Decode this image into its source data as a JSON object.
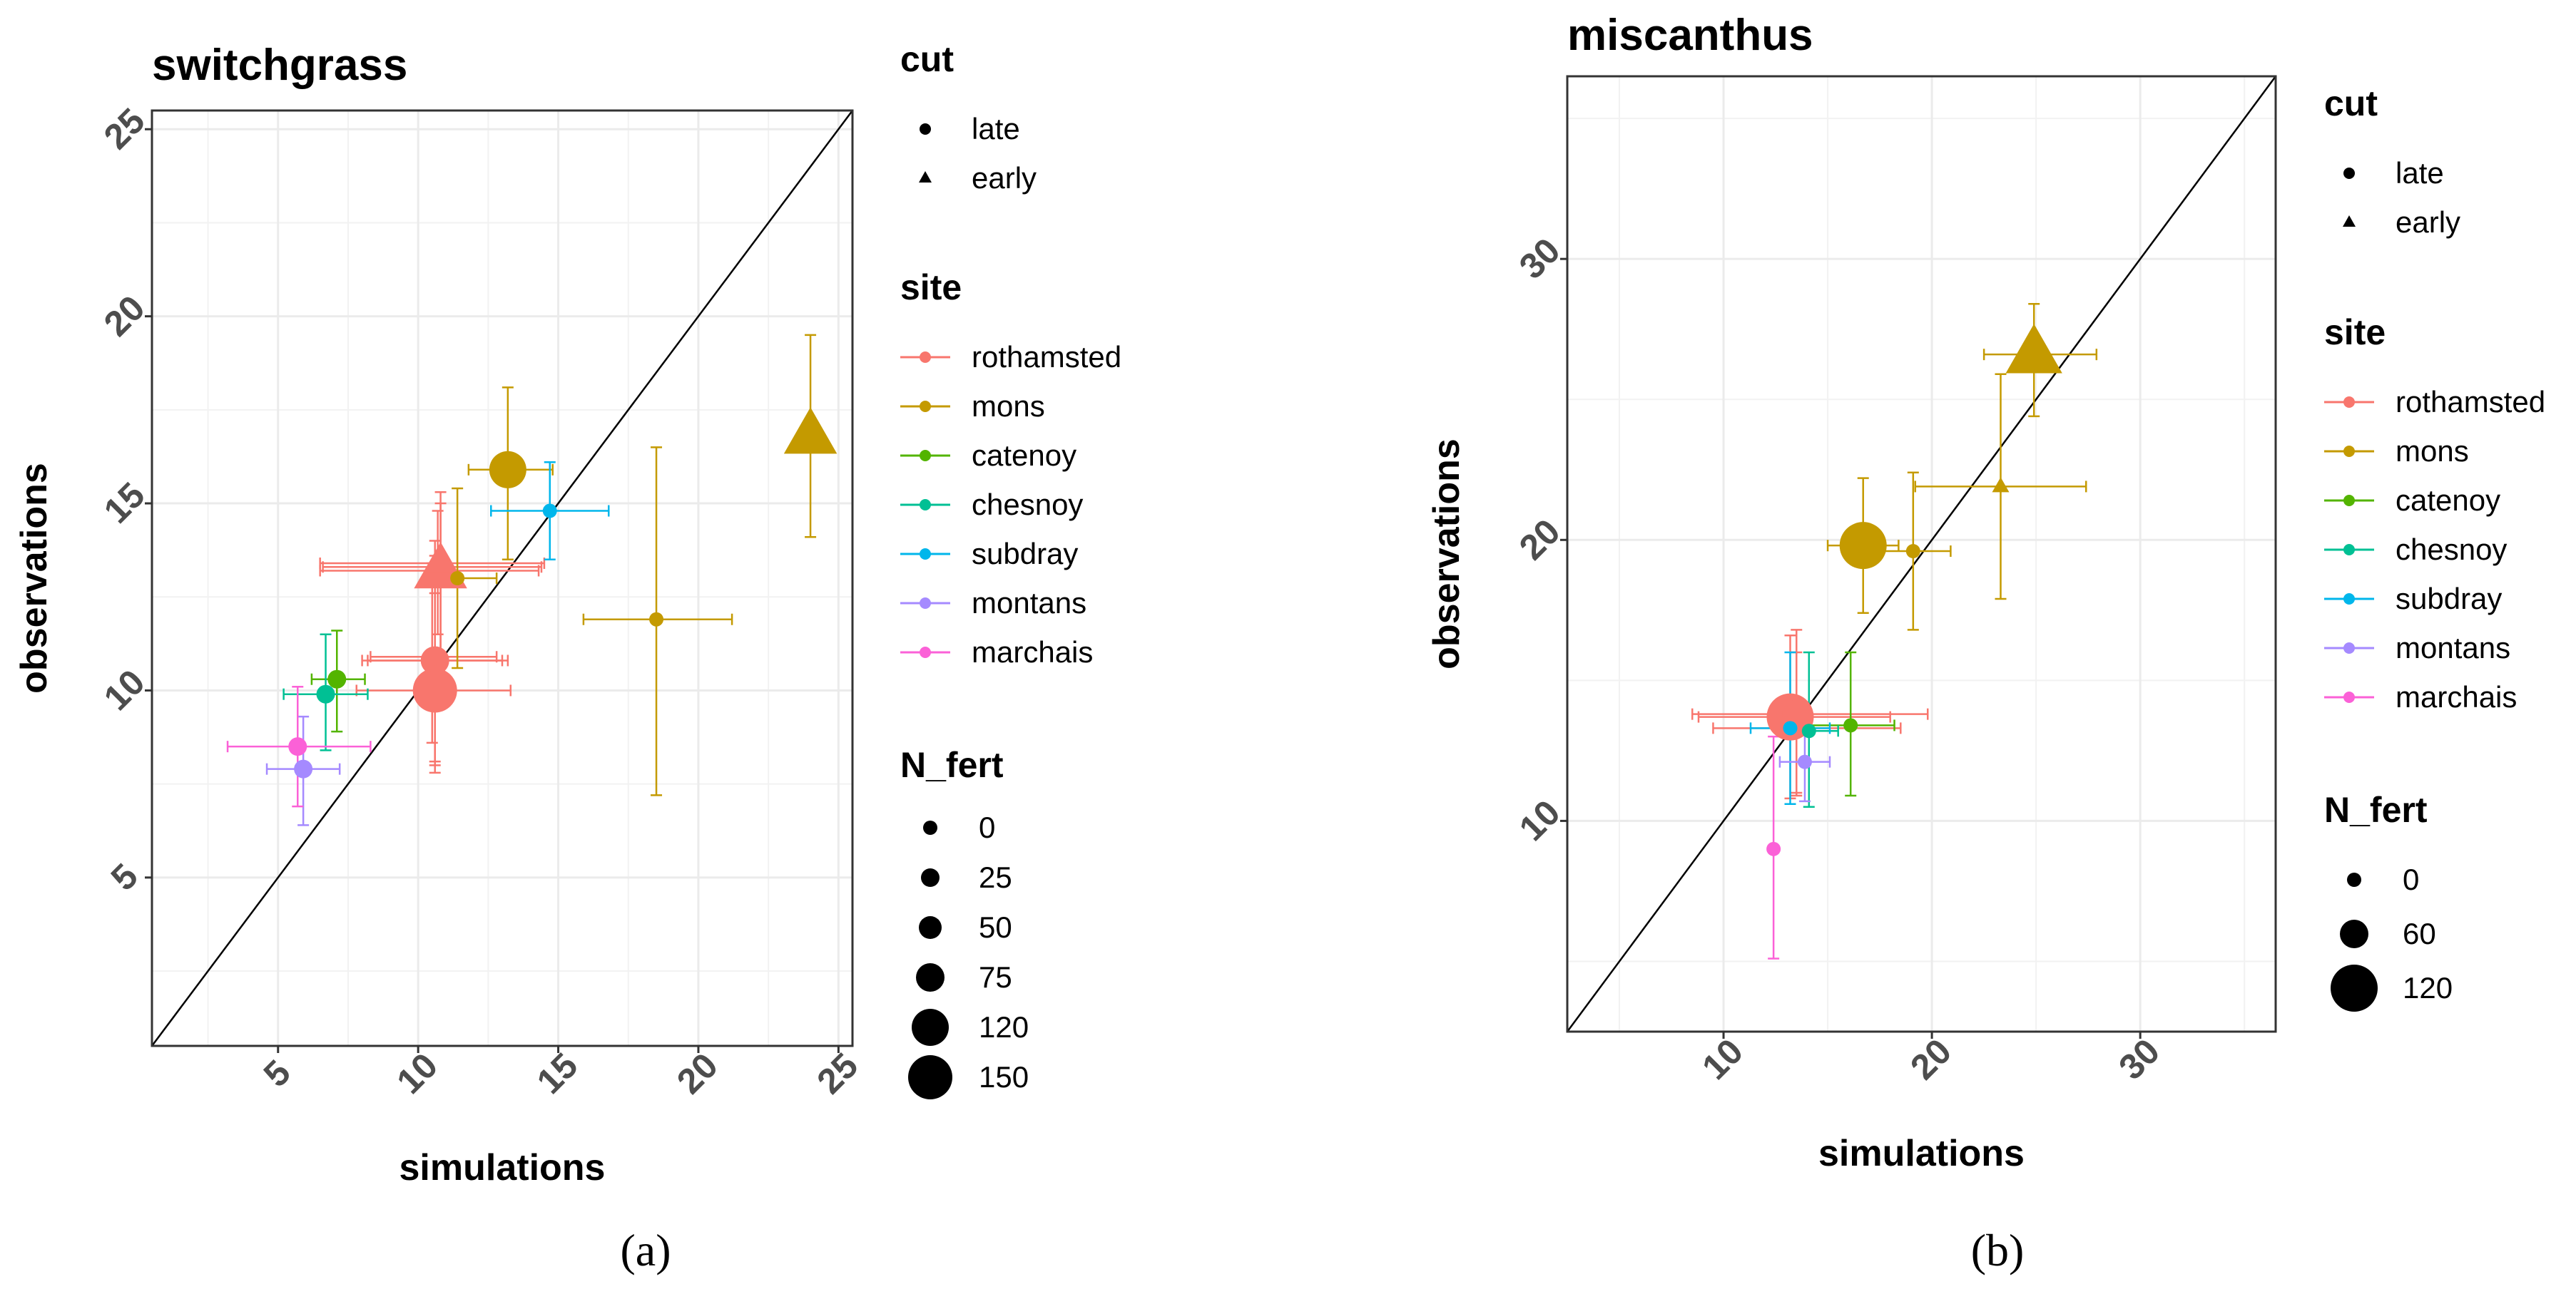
{
  "chart_data": [
    {
      "type": "scatter",
      "title": "switchgrass",
      "xlabel": "simulations",
      "ylabel": "observations",
      "xlim": [
        0.5,
        25.5
      ],
      "ylim": [
        0.5,
        25.5
      ],
      "xticks": [
        5,
        10,
        15,
        20,
        25
      ],
      "yticks": [
        5,
        10,
        15,
        20,
        25
      ],
      "caption": "(a)",
      "legend": {
        "cut_title": "cut",
        "cut": [
          "late",
          "early"
        ],
        "site_title": "site",
        "sites": [
          "rothamsted",
          "mons",
          "catenoy",
          "chesnoy",
          "subdray",
          "montans",
          "marchais"
        ],
        "site_colors": [
          "#F8766D",
          "#C49A00",
          "#53B400",
          "#00C094",
          "#00B6EB",
          "#A58AFF",
          "#FB61D7"
        ],
        "nfert_title": "N_fert",
        "nfert": [
          "0",
          "25",
          "50",
          "75",
          "120",
          "150"
        ]
      },
      "points": [
        {
          "site": "rothamsted",
          "cut": "late",
          "n": 25,
          "x": 10.5,
          "y": 10.9,
          "xmin": 8.3,
          "xmax": 12.8,
          "ymin": 8.6,
          "ymax": 13.4
        },
        {
          "site": "rothamsted",
          "cut": "late",
          "n": 50,
          "x": 10.6,
          "y": 10.8,
          "xmin": 8.0,
          "xmax": 13.0,
          "ymin": 8.1,
          "ymax": 13.6
        },
        {
          "site": "rothamsted",
          "cut": "late",
          "n": 75,
          "x": 10.6,
          "y": 10.8,
          "xmin": 8.2,
          "xmax": 13.2,
          "ymin": 8.0,
          "ymax": 14.0
        },
        {
          "site": "rothamsted",
          "cut": "late",
          "n": 150,
          "x": 10.6,
          "y": 10.0,
          "xmin": 7.8,
          "xmax": 13.3,
          "ymin": 7.8,
          "ymax": 12.6
        },
        {
          "site": "rothamsted",
          "cut": "early",
          "n": 50,
          "x": 10.7,
          "y": 13.4,
          "xmin": 6.5,
          "xmax": 14.5,
          "ymin": 11.5,
          "ymax": 14.8
        },
        {
          "site": "rothamsted",
          "cut": "early",
          "n": 120,
          "x": 10.8,
          "y": 13.3,
          "xmin": 6.6,
          "xmax": 14.4,
          "ymin": 11.0,
          "ymax": 15.0
        },
        {
          "site": "rothamsted",
          "cut": "early",
          "n": 150,
          "x": 10.8,
          "y": 13.2,
          "xmin": 6.5,
          "xmax": 14.3,
          "ymin": 10.9,
          "ymax": 15.3
        },
        {
          "site": "mons",
          "cut": "late",
          "n": 120,
          "x": 13.2,
          "y": 15.9,
          "xmin": 11.8,
          "xmax": 14.8,
          "ymin": 13.5,
          "ymax": 18.1
        },
        {
          "site": "mons",
          "cut": "late",
          "n": 0,
          "x": 11.4,
          "y": 13.0,
          "xmin": 10.3,
          "xmax": 12.8,
          "ymin": 10.6,
          "ymax": 15.4
        },
        {
          "site": "mons",
          "cut": "late",
          "n": 0,
          "x": 18.5,
          "y": 11.9,
          "xmin": 15.9,
          "xmax": 21.2,
          "ymin": 7.2,
          "ymax": 16.5
        },
        {
          "site": "mons",
          "cut": "early",
          "n": 150,
          "x": 24.0,
          "y": 16.8,
          "xmin": 24.0,
          "xmax": 24.0,
          "ymin": 14.1,
          "ymax": 19.5
        },
        {
          "site": "catenoy",
          "cut": "late",
          "n": 25,
          "x": 7.1,
          "y": 10.3,
          "xmin": 6.2,
          "xmax": 8.1,
          "ymin": 8.9,
          "ymax": 11.6
        },
        {
          "site": "chesnoy",
          "cut": "late",
          "n": 25,
          "x": 6.7,
          "y": 9.9,
          "xmin": 5.2,
          "xmax": 8.2,
          "ymin": 8.4,
          "ymax": 11.5
        },
        {
          "site": "subdray",
          "cut": "late",
          "n": 0,
          "x": 14.7,
          "y": 14.8,
          "xmin": 12.6,
          "xmax": 16.8,
          "ymin": 13.5,
          "ymax": 16.1
        },
        {
          "site": "montans",
          "cut": "late",
          "n": 25,
          "x": 5.9,
          "y": 7.9,
          "xmin": 4.6,
          "xmax": 7.2,
          "ymin": 6.4,
          "ymax": 9.3
        },
        {
          "site": "marchais",
          "cut": "late",
          "n": 25,
          "x": 5.7,
          "y": 8.5,
          "xmin": 3.2,
          "xmax": 8.3,
          "ymin": 6.9,
          "ymax": 10.1
        }
      ]
    },
    {
      "type": "scatter",
      "title": "miscanthus",
      "xlabel": "simulations",
      "ylabel": "observations",
      "xlim": [
        2.5,
        36.5
      ],
      "ylim": [
        2.5,
        36.5
      ],
      "xticks": [
        10,
        20,
        30
      ],
      "yticks": [
        10,
        20,
        30
      ],
      "caption": "(b)",
      "legend": {
        "cut_title": "cut",
        "cut": [
          "late",
          "early"
        ],
        "site_title": "site",
        "sites": [
          "rothamsted",
          "mons",
          "catenoy",
          "chesnoy",
          "subdray",
          "montans",
          "marchais"
        ],
        "site_colors": [
          "#F8766D",
          "#C49A00",
          "#53B400",
          "#00C094",
          "#00B6EB",
          "#A58AFF",
          "#FB61D7"
        ],
        "nfert_title": "N_fert",
        "nfert": [
          "0",
          "60",
          "120"
        ]
      },
      "points": [
        {
          "site": "rothamsted",
          "cut": "late",
          "n": 60,
          "x": 13.5,
          "y": 13.8,
          "xmin": 8.5,
          "xmax": 19.8,
          "ymin": 10.9,
          "ymax": 16.8
        },
        {
          "site": "rothamsted",
          "cut": "late",
          "n": 120,
          "x": 13.2,
          "y": 13.7,
          "xmin": 8.8,
          "xmax": 18.0,
          "ymin": 10.8,
          "ymax": 16.6
        },
        {
          "site": "rothamsted",
          "cut": "late",
          "n": 0,
          "x": 13.5,
          "y": 13.3,
          "xmin": 9.5,
          "xmax": 18.5,
          "ymin": 11.0,
          "ymax": 16.0
        },
        {
          "site": "mons",
          "cut": "late",
          "n": 120,
          "x": 16.7,
          "y": 19.8,
          "xmin": 15.0,
          "xmax": 18.4,
          "ymin": 17.4,
          "ymax": 22.2
        },
        {
          "site": "mons",
          "cut": "late",
          "n": 0,
          "x": 19.1,
          "y": 19.6,
          "xmin": 17.3,
          "xmax": 20.9,
          "ymin": 16.8,
          "ymax": 22.4
        },
        {
          "site": "mons",
          "cut": "early",
          "n": 0,
          "x": 23.3,
          "y": 21.9,
          "xmin": 19.2,
          "xmax": 27.4,
          "ymin": 17.9,
          "ymax": 25.9
        },
        {
          "site": "mons",
          "cut": "early",
          "n": 120,
          "x": 24.9,
          "y": 26.6,
          "xmin": 22.5,
          "xmax": 27.9,
          "ymin": 24.4,
          "ymax": 28.4
        },
        {
          "site": "catenoy",
          "cut": "late",
          "n": 0,
          "x": 16.1,
          "y": 13.4,
          "xmin": 14.0,
          "xmax": 18.2,
          "ymin": 10.9,
          "ymax": 16.0
        },
        {
          "site": "chesnoy",
          "cut": "late",
          "n": 0,
          "x": 14.1,
          "y": 13.2,
          "xmin": 12.7,
          "xmax": 15.5,
          "ymin": 10.5,
          "ymax": 16.0
        },
        {
          "site": "subdray",
          "cut": "late",
          "n": 0,
          "x": 13.2,
          "y": 13.3,
          "xmin": 11.3,
          "xmax": 15.1,
          "ymin": 10.6,
          "ymax": 16.0
        },
        {
          "site": "montans",
          "cut": "late",
          "n": 0,
          "x": 13.9,
          "y": 12.1,
          "xmin": 12.7,
          "xmax": 15.1,
          "ymin": 10.7,
          "ymax": 13.5
        },
        {
          "site": "marchais",
          "cut": "late",
          "n": 0,
          "x": 12.4,
          "y": 9.0,
          "xmin": 12.4,
          "xmax": 12.4,
          "ymin": 5.1,
          "ymax": 13.0
        }
      ]
    }
  ]
}
